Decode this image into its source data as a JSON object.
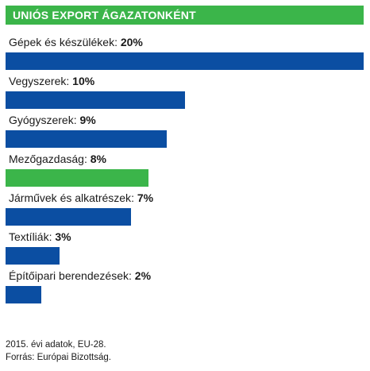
{
  "title": "UNIÓS EXPORT ÁGAZATONKÉNT",
  "colors": {
    "accent_green": "#3bb54a",
    "bar_blue": "#0b4ea2",
    "bar_green": "#3bb54a"
  },
  "chart_data": {
    "type": "bar",
    "orientation": "horizontal",
    "title": "UNIÓS EXPORT ÁGAZATONKÉNT",
    "categories": [
      "Gépek és készülékek",
      "Vegyszerek",
      "Gyógyszerek",
      "Mezőgazdaság",
      "Járművek és alkatrészek",
      "Textíliák",
      "Építőipari berendezések"
    ],
    "values": [
      20,
      10,
      9,
      8,
      7,
      3,
      2
    ],
    "value_labels": [
      "20%",
      "10%",
      "9%",
      "8%",
      "7%",
      "3%",
      "2%"
    ],
    "bar_colors": [
      "#0b4ea2",
      "#0b4ea2",
      "#0b4ea2",
      "#3bb54a",
      "#0b4ea2",
      "#0b4ea2",
      "#0b4ea2"
    ],
    "unit": "%",
    "xlim": [
      0,
      20
    ],
    "grid": false,
    "legend": "none"
  },
  "footnote": {
    "line1": "2015. évi adatok, EU-28.",
    "line2": "Forrás: Európai Bizottság."
  }
}
